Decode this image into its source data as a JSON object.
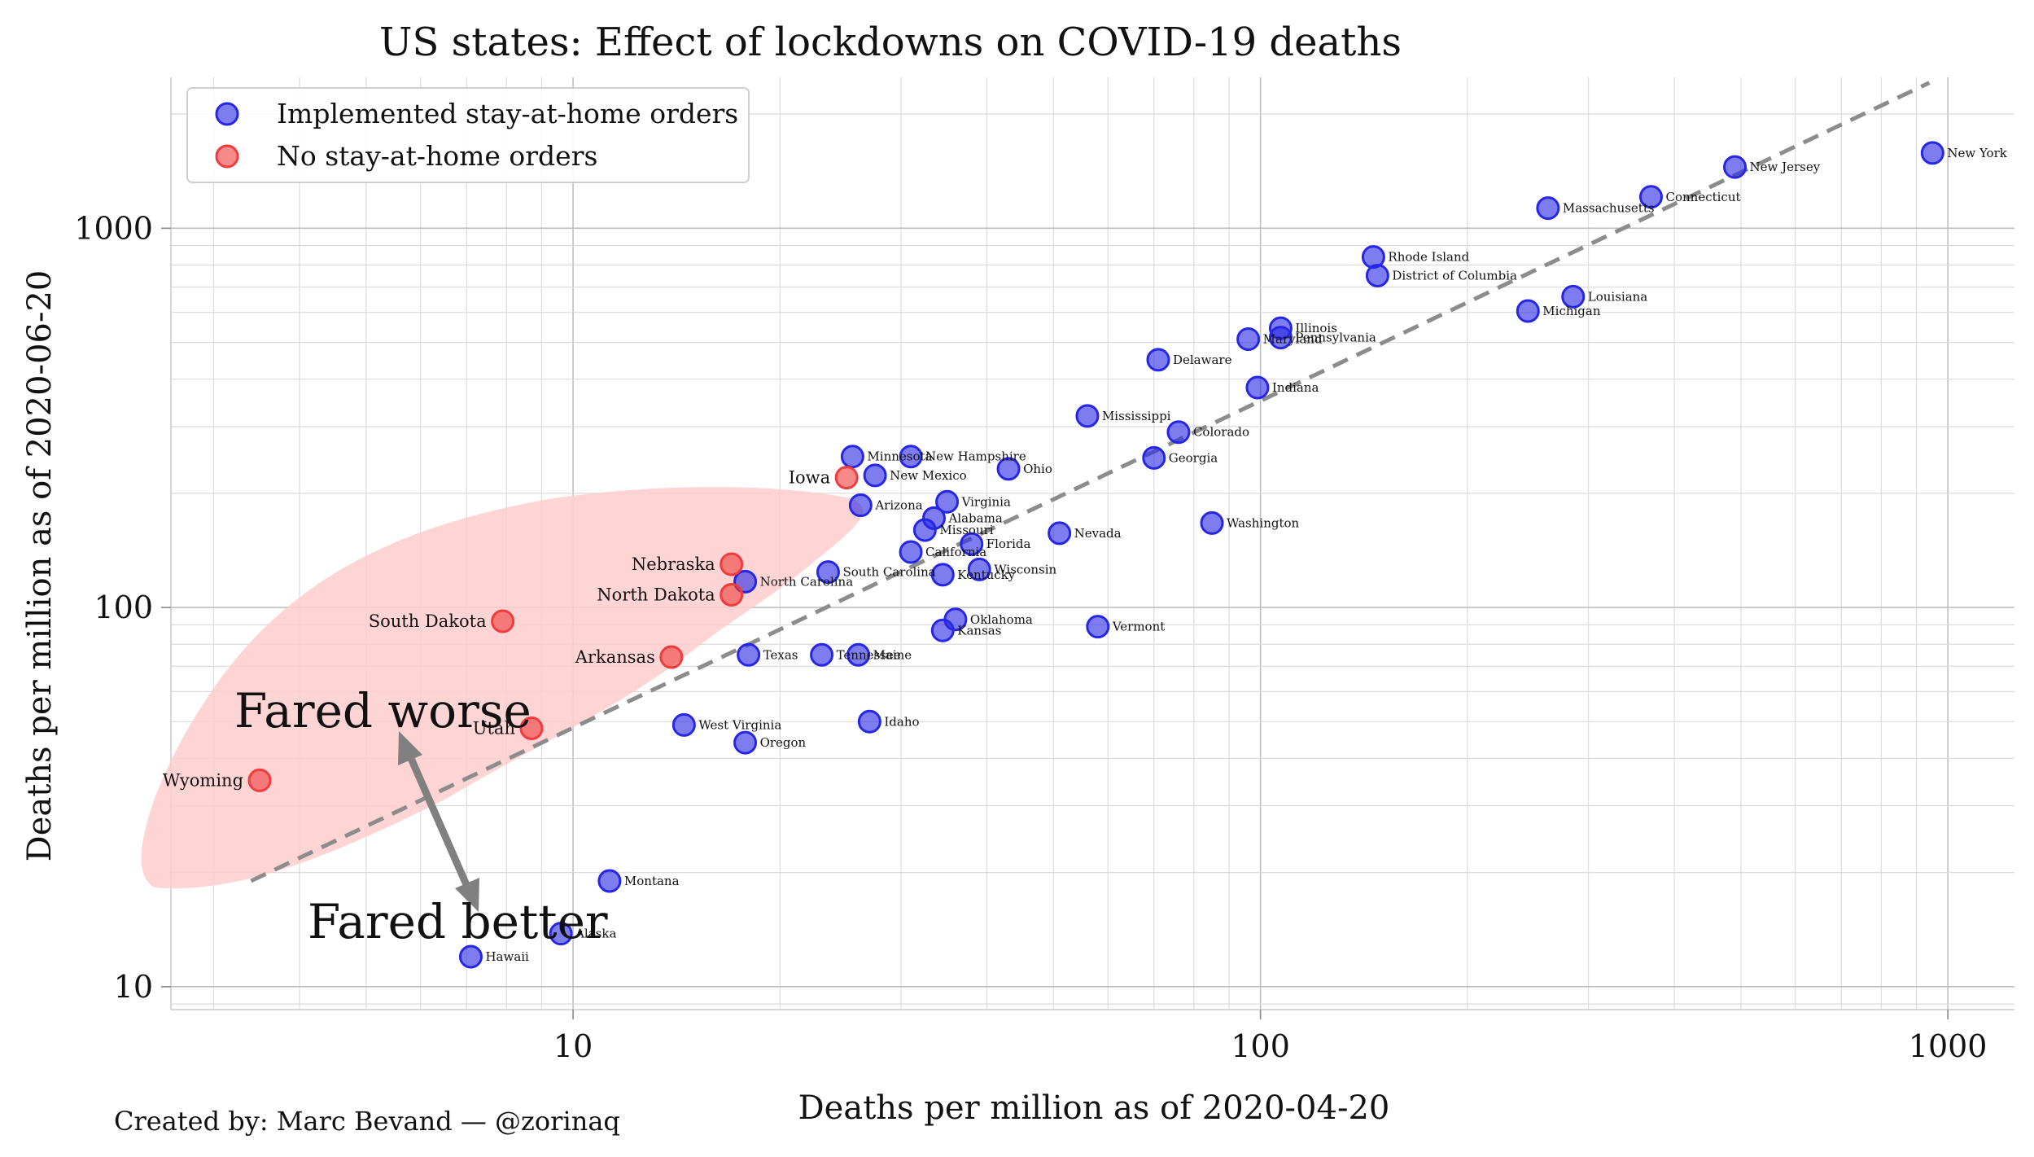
{
  "chart_data": {
    "type": "scatter",
    "title": "US states: Effect of lockdowns on COVID-19 deaths",
    "xlabel": "Deaths per million as of 2020-04-20",
    "ylabel": "Deaths per million as of 2020-06-20",
    "xscale": "log",
    "yscale": "log",
    "xlim": [
      2.6,
      1250
    ],
    "ylim": [
      8.7,
      2500
    ],
    "x_ticks": [
      {
        "value": 10,
        "label": "10"
      },
      {
        "value": 100,
        "label": "100"
      },
      {
        "value": 1000,
        "label": "1000"
      }
    ],
    "y_ticks": [
      {
        "value": 10,
        "label": "10"
      },
      {
        "value": 100,
        "label": "100"
      },
      {
        "value": 1000,
        "label": "1000"
      }
    ],
    "grid": true,
    "legend": {
      "placement": "top-left",
      "entries": [
        {
          "label": "Implemented stay-at-home orders",
          "color": "#2626e6"
        },
        {
          "label": "No stay-at-home orders",
          "color": "#f03c3c"
        }
      ]
    },
    "trend_line": {
      "style": "dashed",
      "color": "#8c8c8c",
      "from": [
        3.4,
        19
      ],
      "to": [
        940,
        2420
      ]
    },
    "series": [
      {
        "name": "Implemented stay-at-home orders",
        "color": "#2626e6",
        "points": [
          {
            "label": "New York",
            "x": 950,
            "y": 1580
          },
          {
            "label": "New Jersey",
            "x": 490,
            "y": 1450
          },
          {
            "label": "Connecticut",
            "x": 370,
            "y": 1210
          },
          {
            "label": "Massachusetts",
            "x": 262,
            "y": 1130
          },
          {
            "label": "Louisiana",
            "x": 285,
            "y": 660
          },
          {
            "label": "Michigan",
            "x": 245,
            "y": 605
          },
          {
            "label": "Rhode Island",
            "x": 146,
            "y": 840
          },
          {
            "label": "District of Columbia",
            "x": 148,
            "y": 750
          },
          {
            "label": "Illinois",
            "x": 107,
            "y": 545
          },
          {
            "label": "Pennsylvania",
            "x": 107,
            "y": 515
          },
          {
            "label": "Maryland",
            "x": 96,
            "y": 510
          },
          {
            "label": "Indiana",
            "x": 99,
            "y": 380
          },
          {
            "label": "Delaware",
            "x": 71,
            "y": 450
          },
          {
            "label": "Mississippi",
            "x": 56,
            "y": 320
          },
          {
            "label": "Colorado",
            "x": 76,
            "y": 290
          },
          {
            "label": "Georgia",
            "x": 70,
            "y": 248
          },
          {
            "label": "Washington",
            "x": 85,
            "y": 167
          },
          {
            "label": "Nevada",
            "x": 51,
            "y": 157
          },
          {
            "label": "Vermont",
            "x": 58,
            "y": 89
          },
          {
            "label": "Ohio",
            "x": 43,
            "y": 232
          },
          {
            "label": "Minnesota",
            "x": 25.5,
            "y": 250
          },
          {
            "label": "New Hampshire",
            "x": 31,
            "y": 250
          },
          {
            "label": "New Mexico",
            "x": 27.5,
            "y": 223
          },
          {
            "label": "Arizona",
            "x": 26.2,
            "y": 186
          },
          {
            "label": "Virginia",
            "x": 35,
            "y": 190
          },
          {
            "label": "Alabama",
            "x": 33.5,
            "y": 172
          },
          {
            "label": "Missouri",
            "x": 32.5,
            "y": 160
          },
          {
            "label": "Florida",
            "x": 38,
            "y": 147
          },
          {
            "label": "California",
            "x": 31,
            "y": 140
          },
          {
            "label": "Wisconsin",
            "x": 39,
            "y": 126
          },
          {
            "label": "Kentucky",
            "x": 34.5,
            "y": 122
          },
          {
            "label": "South Carolina",
            "x": 23.5,
            "y": 124
          },
          {
            "label": "North Carolina",
            "x": 17.8,
            "y": 117
          },
          {
            "label": "Oklahoma",
            "x": 36,
            "y": 93
          },
          {
            "label": "Kansas",
            "x": 34.5,
            "y": 87
          },
          {
            "label": "Tennessee",
            "x": 23,
            "y": 75
          },
          {
            "label": "Maine",
            "x": 26,
            "y": 75
          },
          {
            "label": "Texas",
            "x": 18,
            "y": 75
          },
          {
            "label": "Idaho",
            "x": 27,
            "y": 50
          },
          {
            "label": "West Virginia",
            "x": 14.5,
            "y": 49
          },
          {
            "label": "Oregon",
            "x": 17.8,
            "y": 44
          },
          {
            "label": "Montana",
            "x": 11.3,
            "y": 19
          },
          {
            "label": "Alaska",
            "x": 9.6,
            "y": 13.8
          },
          {
            "label": "Hawaii",
            "x": 7.1,
            "y": 12
          }
        ]
      },
      {
        "name": "No stay-at-home orders",
        "color": "#f03c3c",
        "points": [
          {
            "label": "Iowa",
            "x": 25,
            "y": 220
          },
          {
            "label": "Nebraska",
            "x": 17,
            "y": 130
          },
          {
            "label": "North Dakota",
            "x": 17,
            "y": 108
          },
          {
            "label": "South Dakota",
            "x": 7.9,
            "y": 92
          },
          {
            "label": "Arkansas",
            "x": 13.9,
            "y": 74
          },
          {
            "label": "Utah",
            "x": 8.7,
            "y": 48
          },
          {
            "label": "Wyoming",
            "x": 3.5,
            "y": 35
          }
        ]
      }
    ],
    "annotations": [
      {
        "text": "Fared worse"
      },
      {
        "text": "Fared better"
      }
    ],
    "credit": "Created by: Marc Bevand — @zorinaq"
  }
}
